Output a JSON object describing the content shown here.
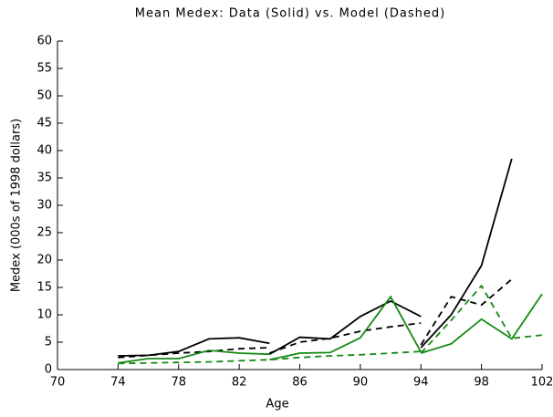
{
  "chart_data": {
    "type": "line",
    "title": "Mean Medex:  Data (Solid) vs. Model (Dashed)",
    "xlabel": "Age",
    "ylabel": "Medex (000s of 1998 dollars)",
    "xlim": [
      70,
      102
    ],
    "xticks": [
      70,
      74,
      78,
      82,
      86,
      90,
      94,
      98,
      102
    ],
    "ylim": [
      0,
      60
    ],
    "yticks": [
      0,
      5,
      10,
      15,
      20,
      25,
      30,
      35,
      40,
      45,
      50,
      55,
      60
    ],
    "series": [
      {
        "color": "#000000",
        "dashed": false,
        "x": [
          74,
          76,
          78,
          80,
          82,
          84
        ],
        "values": [
          2.5,
          2.6,
          3.3,
          5.6,
          5.8,
          4.8
        ]
      },
      {
        "color": "#000000",
        "dashed": false,
        "x": [
          84,
          86,
          88,
          90,
          92,
          94
        ],
        "values": [
          2.8,
          5.9,
          5.6,
          9.7,
          12.5,
          9.7
        ]
      },
      {
        "color": "#000000",
        "dashed": false,
        "x": [
          94,
          96,
          98,
          100
        ],
        "values": [
          4,
          10,
          19,
          38.5
        ]
      },
      {
        "color": "#000000",
        "dashed": true,
        "x": [
          74,
          76,
          78,
          80,
          82,
          84
        ],
        "values": [
          2.2,
          2.6,
          3.0,
          3.3,
          3.8,
          4.0
        ]
      },
      {
        "color": "#000000",
        "dashed": true,
        "x": [
          84,
          86,
          88,
          90,
          92,
          94
        ],
        "values": [
          3,
          5,
          5.7,
          7,
          7.8,
          8.5
        ]
      },
      {
        "color": "#000000",
        "dashed": true,
        "x": [
          94,
          96,
          98,
          100
        ],
        "values": [
          4.5,
          13.3,
          11.8,
          16.5
        ]
      },
      {
        "color": "#138a13",
        "dashed": false,
        "x": [
          74,
          76,
          78,
          80,
          82,
          84
        ],
        "values": [
          1.2,
          2,
          2,
          3.5,
          3,
          2.8
        ]
      },
      {
        "color": "#138a13",
        "dashed": false,
        "x": [
          84,
          86,
          88,
          90,
          92,
          94
        ],
        "values": [
          1.8,
          3,
          3.1,
          5.8,
          13.3,
          3.2
        ]
      },
      {
        "color": "#138a13",
        "dashed": false,
        "x": [
          94,
          96,
          98,
          100,
          102
        ],
        "values": [
          3,
          4.7,
          9.2,
          5.6,
          13.8
        ]
      },
      {
        "color": "#138a13",
        "dashed": true,
        "x": [
          74,
          76,
          78,
          80,
          82,
          84,
          86,
          88,
          90,
          92,
          94
        ],
        "values": [
          1.1,
          1.2,
          1.3,
          1.4,
          1.6,
          1.8,
          2.2,
          2.5,
          2.7,
          3,
          3.3
        ]
      },
      {
        "color": "#138a13",
        "dashed": true,
        "x": [
          94,
          96,
          98,
          100,
          102
        ],
        "values": [
          3,
          9,
          15.3,
          5.7,
          6.3
        ]
      }
    ]
  }
}
